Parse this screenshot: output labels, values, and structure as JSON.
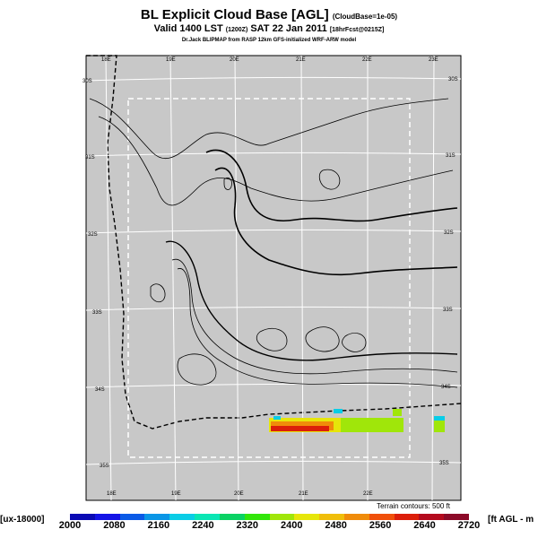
{
  "header": {
    "title": "BL Explicit Cloud Base [AGL]",
    "title_tag": "(CloudBase=1e-05)",
    "valid": "Valid 1400 LST",
    "valid_code": "(1200Z)",
    "date": "SAT 22 Jan 2011",
    "forecast": "[18hrFcst@0215Z]",
    "credit": "Dr.Jack BLIPMAP from RASP 12km GFS-initialized WRF-ARW model"
  },
  "map": {
    "lon_labels_top": [
      "18E",
      "19E",
      "20E",
      "21E",
      "22E",
      "23E"
    ],
    "lon_labels_bottom": [
      "18E",
      "19E",
      "20E",
      "21E",
      "22E"
    ],
    "lat_labels_left": [
      "30S",
      "31S",
      "32S",
      "33S",
      "34S",
      "35S"
    ],
    "lat_labels_right": [
      "30S",
      "31S",
      "32S",
      "33S",
      "34S",
      "35S"
    ],
    "land_color": "#c8c8c8",
    "grid_color": "#ffffff",
    "terrain_note": "Terrain contours: 500 ft"
  },
  "legend": {
    "left_label": "[ux-18000]",
    "right_label": "[ft AGL - m",
    "ticks": [
      "2000",
      "2080",
      "2160",
      "2240",
      "2320",
      "2400",
      "2480",
      "2560",
      "2640",
      "2720"
    ],
    "colors": [
      "#0a0ab4",
      "#1414e6",
      "#0a5ae6",
      "#0a96e6",
      "#0acde6",
      "#0ae6b4",
      "#0ad264",
      "#32e60a",
      "#a0e60a",
      "#e6e60a",
      "#f0be0a",
      "#f08c0a",
      "#f0500a",
      "#dc1e0a",
      "#b40a1e",
      "#8c0a28"
    ]
  }
}
